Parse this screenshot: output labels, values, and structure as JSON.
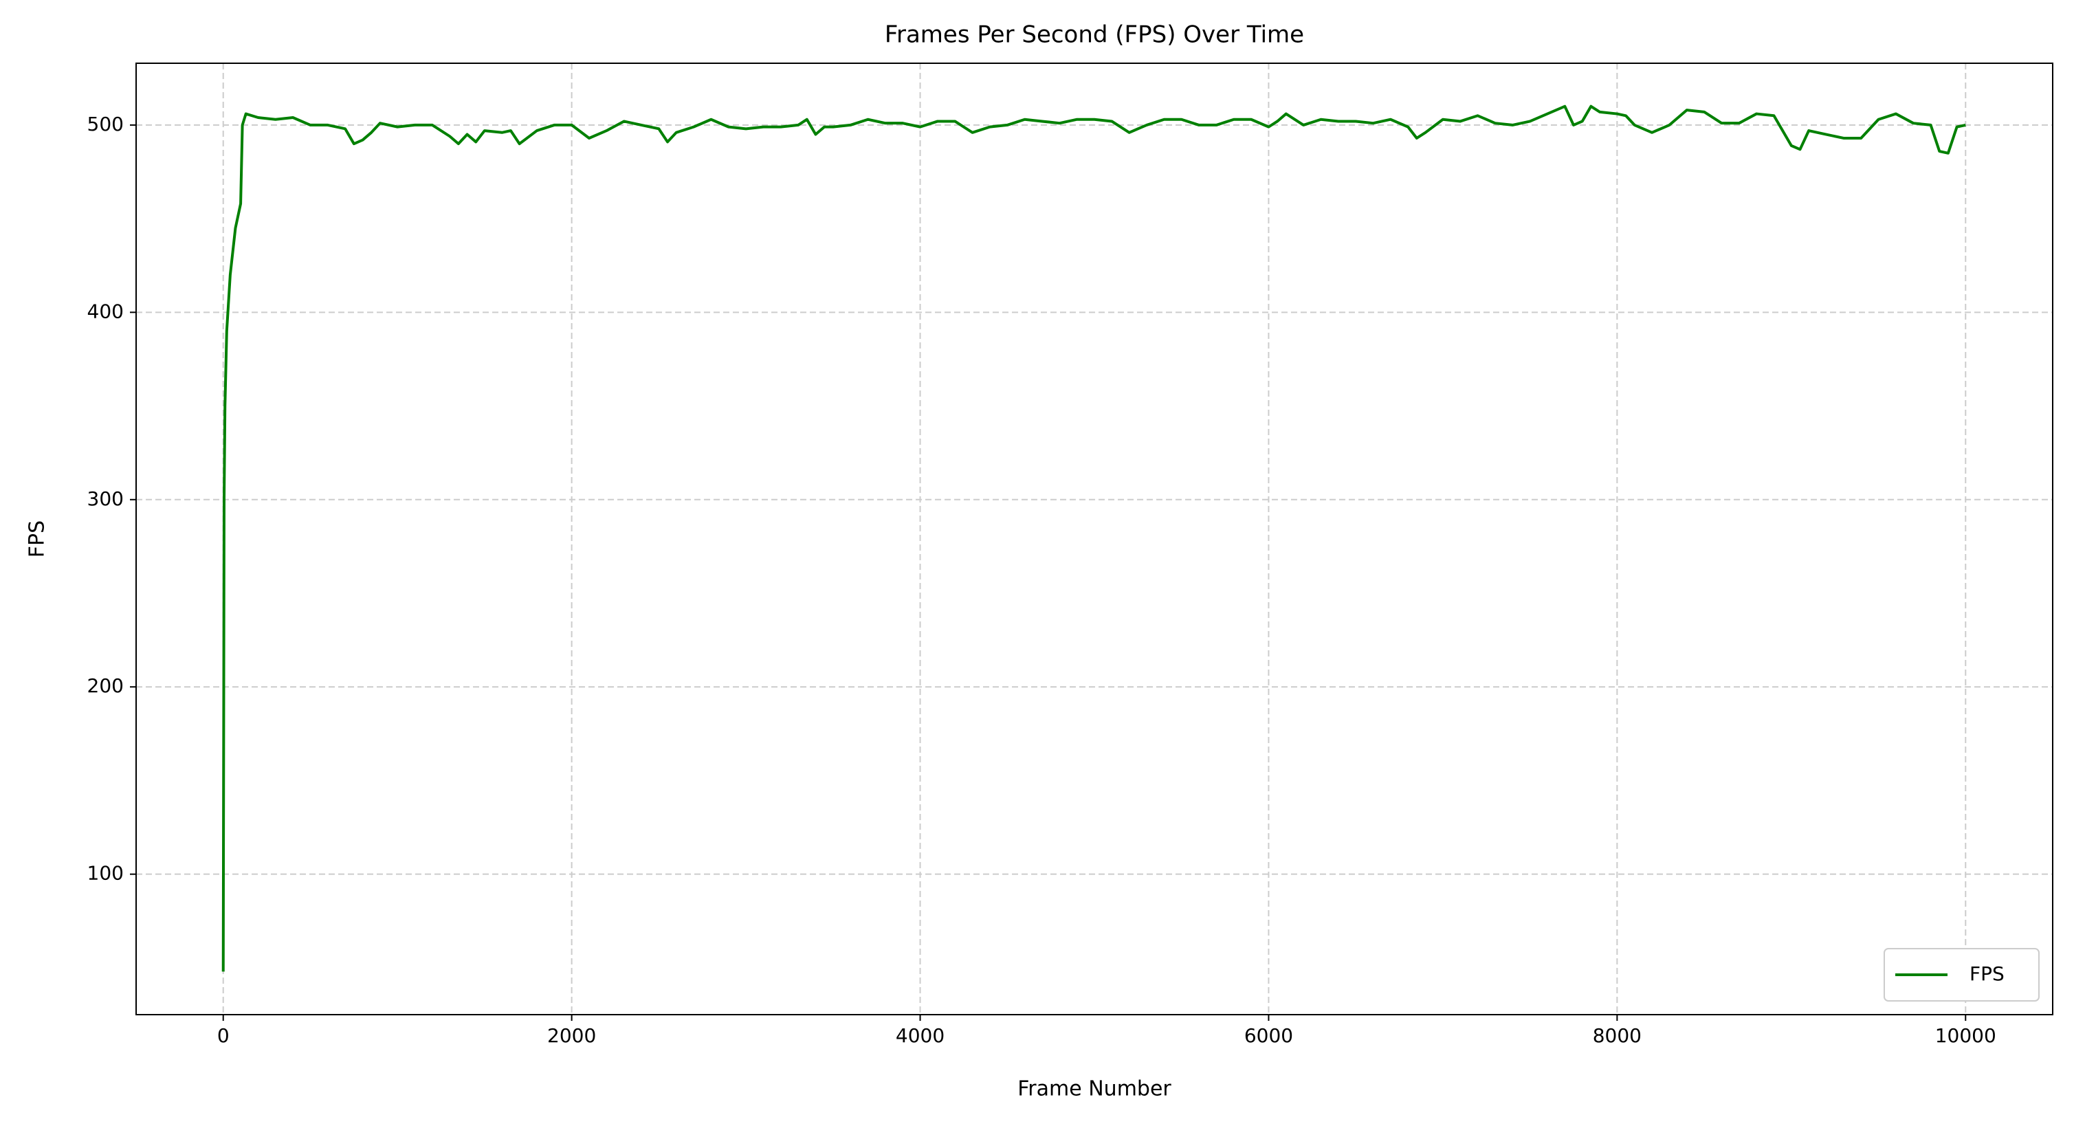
{
  "chart_data": {
    "type": "line",
    "title": "Frames Per Second (FPS) Over Time",
    "x_label": "Frame Number",
    "y_label": "FPS",
    "x": [
      0,
      5,
      10,
      20,
      40,
      70,
      100,
      110,
      130,
      200,
      300,
      400,
      500,
      600,
      700,
      750,
      800,
      850,
      900,
      1000,
      1100,
      1200,
      1300,
      1350,
      1400,
      1450,
      1500,
      1600,
      1650,
      1700,
      1800,
      1900,
      2000,
      2100,
      2200,
      2300,
      2400,
      2500,
      2550,
      2600,
      2700,
      2800,
      2900,
      3000,
      3100,
      3200,
      3300,
      3350,
      3400,
      3450,
      3500,
      3600,
      3700,
      3800,
      3900,
      4000,
      4100,
      4200,
      4300,
      4400,
      4500,
      4600,
      4700,
      4800,
      4900,
      5000,
      5100,
      5200,
      5300,
      5400,
      5500,
      5600,
      5700,
      5800,
      5900,
      6000,
      6050,
      6100,
      6200,
      6300,
      6400,
      6500,
      6600,
      6700,
      6800,
      6850,
      6900,
      7000,
      7100,
      7200,
      7300,
      7400,
      7500,
      7600,
      7700,
      7750,
      7800,
      7850,
      7900,
      8000,
      8050,
      8100,
      8200,
      8300,
      8400,
      8500,
      8600,
      8700,
      8800,
      8900,
      9000,
      9050,
      9100,
      9200,
      9300,
      9400,
      9500,
      9600,
      9700,
      9800,
      9850,
      9900,
      9950,
      10000
    ],
    "series": [
      {
        "name": "FPS",
        "color": "#008000",
        "values": [
          48,
          300,
          350,
          390,
          420,
          445,
          458,
          500,
          506,
          504,
          503,
          504,
          500,
          500,
          498,
          490,
          492,
          496,
          501,
          499,
          500,
          500,
          494,
          490,
          495,
          491,
          497,
          496,
          497,
          490,
          497,
          500,
          500,
          493,
          497,
          502,
          500,
          498,
          491,
          496,
          499,
          503,
          499,
          498,
          499,
          499,
          500,
          503,
          495,
          499,
          499,
          500,
          503,
          501,
          501,
          499,
          502,
          502,
          496,
          499,
          500,
          503,
          502,
          501,
          503,
          503,
          502,
          496,
          500,
          503,
          503,
          500,
          500,
          503,
          503,
          499,
          502,
          506,
          500,
          503,
          502,
          502,
          501,
          503,
          499,
          493,
          496,
          503,
          502,
          505,
          501,
          500,
          502,
          506,
          510,
          500,
          502,
          510,
          507,
          506,
          505,
          500,
          496,
          500,
          508,
          507,
          501,
          501,
          506,
          505,
          489,
          487,
          497,
          495,
          493,
          493,
          503,
          506,
          501,
          500,
          486,
          485,
          499,
          500
        ]
      }
    ],
    "xlim": [
      -500,
      10500
    ],
    "ylim": [
      25,
      533
    ],
    "xticks": [
      0,
      2000,
      4000,
      6000,
      8000,
      10000
    ],
    "yticks": [
      100,
      200,
      300,
      400,
      500
    ],
    "grid": true,
    "legend": "lower right"
  }
}
